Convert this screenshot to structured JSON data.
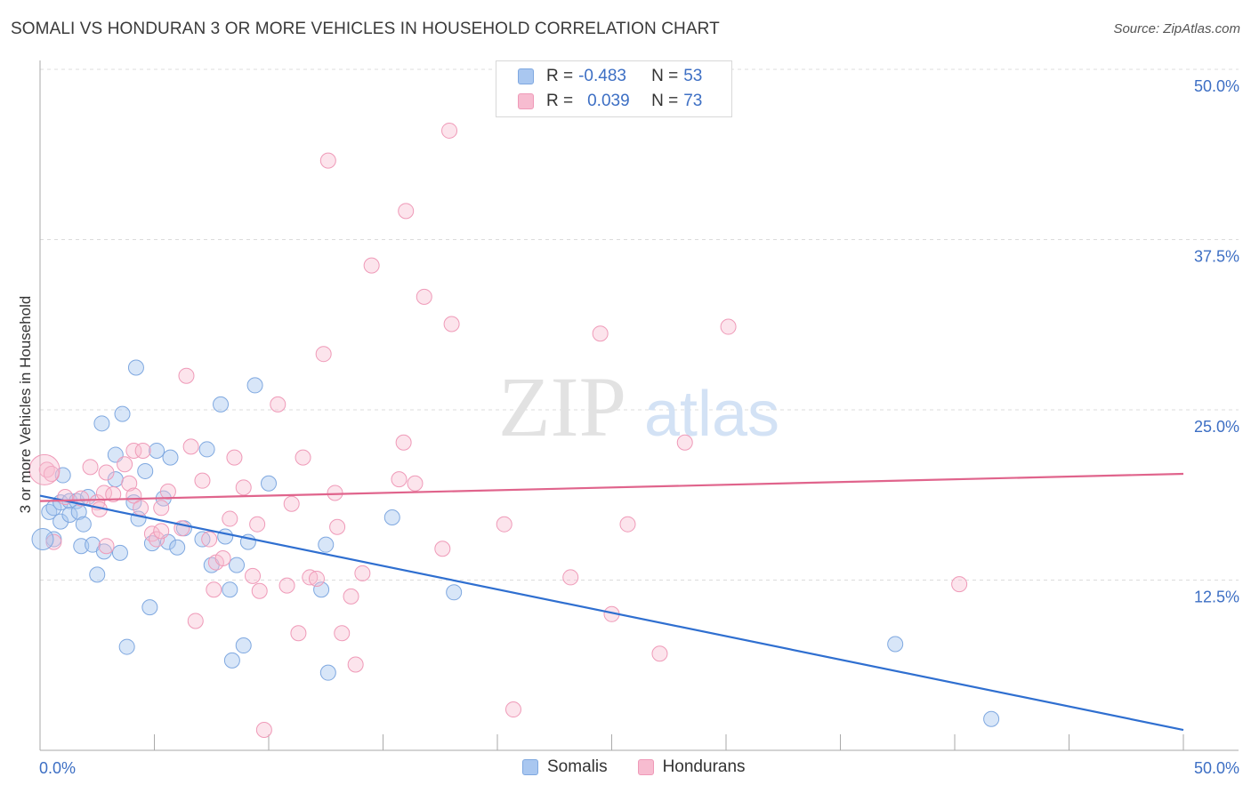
{
  "title": "SOMALI VS HONDURAN 3 OR MORE VEHICLES IN HOUSEHOLD CORRELATION CHART",
  "source": "Source: ZipAtlas.com",
  "watermark": {
    "zip": "ZIP",
    "atlas": "atlas"
  },
  "legend": [
    {
      "r_label": "R =",
      "r_value": "-0.483",
      "n_label": "N =",
      "n_value": "53",
      "color": "#a9c7f0",
      "stroke": "#7fa8e0"
    },
    {
      "r_label": "R =",
      "r_value": "0.039",
      "n_label": "N =",
      "n_value": "73",
      "color": "#f7bcd0",
      "stroke": "#ef9ab8"
    }
  ],
  "bottom_legend": [
    {
      "label": "Somalis",
      "color": "#a9c7f0",
      "stroke": "#7fa8e0"
    },
    {
      "label": "Hondurans",
      "color": "#f7bcd0",
      "stroke": "#ef9ab8"
    }
  ],
  "chart_data": {
    "type": "scatter",
    "xlabel": "",
    "ylabel": "3 or more Vehicles in Household",
    "xlim": [
      0,
      50
    ],
    "ylim": [
      0,
      50
    ],
    "x_tick_labels": [
      "0.0%",
      "50.0%"
    ],
    "y_ticks": [
      12.5,
      25.0,
      37.5,
      50.0
    ],
    "y_tick_labels": [
      "12.5%",
      "25.0%",
      "37.5%",
      "50.0%"
    ],
    "grid": true,
    "series": [
      {
        "name": "Somalis",
        "color": "#6f9fe0",
        "trend": {
          "x": [
            0,
            50
          ],
          "y": [
            18.7,
            1.5
          ],
          "color": "#2f6fd0"
        },
        "points": [
          [
            0.4,
            17.5
          ],
          [
            0.6,
            15.5
          ],
          [
            0.6,
            17.8
          ],
          [
            0.9,
            18.2
          ],
          [
            0.9,
            16.8
          ],
          [
            1.0,
            20.2
          ],
          [
            1.3,
            18.3
          ],
          [
            1.3,
            17.3
          ],
          [
            1.6,
            18.3
          ],
          [
            1.7,
            17.5
          ],
          [
            1.8,
            15.0
          ],
          [
            1.9,
            16.6
          ],
          [
            2.1,
            18.6
          ],
          [
            2.3,
            15.1
          ],
          [
            2.5,
            12.9
          ],
          [
            2.7,
            24.0
          ],
          [
            2.8,
            14.6
          ],
          [
            3.3,
            21.7
          ],
          [
            3.3,
            19.9
          ],
          [
            3.5,
            14.5
          ],
          [
            3.6,
            24.7
          ],
          [
            3.8,
            7.6
          ],
          [
            4.1,
            18.2
          ],
          [
            4.2,
            28.1
          ],
          [
            4.3,
            17.0
          ],
          [
            4.6,
            20.5
          ],
          [
            4.8,
            10.5
          ],
          [
            4.9,
            15.2
          ],
          [
            5.1,
            22.0
          ],
          [
            5.4,
            18.5
          ],
          [
            5.6,
            15.3
          ],
          [
            5.7,
            21.5
          ],
          [
            6.0,
            14.9
          ],
          [
            6.3,
            16.3
          ],
          [
            7.1,
            15.5
          ],
          [
            7.3,
            22.1
          ],
          [
            7.5,
            13.6
          ],
          [
            7.9,
            25.4
          ],
          [
            8.1,
            15.7
          ],
          [
            8.3,
            11.8
          ],
          [
            8.4,
            6.6
          ],
          [
            8.6,
            13.6
          ],
          [
            8.9,
            7.7
          ],
          [
            9.1,
            15.3
          ],
          [
            9.4,
            26.8
          ],
          [
            10.0,
            19.6
          ],
          [
            12.3,
            11.8
          ],
          [
            12.5,
            15.1
          ],
          [
            12.6,
            5.7
          ],
          [
            15.4,
            17.1
          ],
          [
            18.1,
            11.6
          ],
          [
            37.4,
            7.8
          ],
          [
            41.6,
            2.3
          ]
        ]
      },
      {
        "name": "Hondurans",
        "color": "#f0a0bc",
        "trend": {
          "x": [
            0,
            50
          ],
          "y": [
            18.3,
            20.3
          ],
          "color": "#e0648c"
        },
        "points": [
          [
            0.3,
            20.6
          ],
          [
            0.5,
            20.3
          ],
          [
            0.6,
            15.3
          ],
          [
            1.1,
            18.6
          ],
          [
            1.8,
            18.5
          ],
          [
            2.2,
            20.8
          ],
          [
            2.5,
            18.2
          ],
          [
            2.6,
            17.7
          ],
          [
            2.8,
            18.9
          ],
          [
            2.9,
            15.0
          ],
          [
            2.9,
            20.4
          ],
          [
            3.2,
            18.8
          ],
          [
            3.7,
            21.0
          ],
          [
            3.9,
            19.6
          ],
          [
            4.1,
            22.0
          ],
          [
            4.1,
            18.7
          ],
          [
            4.4,
            17.8
          ],
          [
            4.5,
            22.0
          ],
          [
            4.9,
            15.9
          ],
          [
            5.1,
            15.5
          ],
          [
            5.3,
            16.1
          ],
          [
            5.3,
            17.8
          ],
          [
            5.6,
            19.0
          ],
          [
            6.2,
            16.3
          ],
          [
            6.4,
            27.5
          ],
          [
            6.6,
            22.3
          ],
          [
            6.8,
            9.5
          ],
          [
            7.1,
            19.8
          ],
          [
            7.4,
            15.5
          ],
          [
            7.6,
            11.8
          ],
          [
            7.7,
            13.8
          ],
          [
            8.0,
            14.1
          ],
          [
            8.3,
            17.0
          ],
          [
            8.5,
            21.5
          ],
          [
            8.9,
            19.3
          ],
          [
            9.3,
            12.8
          ],
          [
            9.5,
            16.6
          ],
          [
            9.6,
            11.7
          ],
          [
            9.8,
            1.5
          ],
          [
            10.4,
            25.4
          ],
          [
            10.8,
            12.1
          ],
          [
            11.0,
            18.1
          ],
          [
            11.3,
            8.6
          ],
          [
            11.5,
            21.5
          ],
          [
            11.8,
            12.7
          ],
          [
            12.1,
            12.6
          ],
          [
            12.4,
            29.1
          ],
          [
            12.6,
            43.3
          ],
          [
            12.9,
            18.9
          ],
          [
            13.0,
            16.4
          ],
          [
            13.2,
            8.6
          ],
          [
            13.6,
            11.3
          ],
          [
            13.8,
            6.3
          ],
          [
            14.1,
            13.0
          ],
          [
            14.5,
            35.6
          ],
          [
            15.7,
            19.9
          ],
          [
            15.9,
            22.6
          ],
          [
            16.0,
            39.6
          ],
          [
            16.4,
            19.6
          ],
          [
            16.8,
            33.3
          ],
          [
            17.6,
            14.8
          ],
          [
            17.9,
            45.5
          ],
          [
            18.0,
            31.3
          ],
          [
            20.3,
            16.6
          ],
          [
            20.7,
            3.0
          ],
          [
            23.2,
            12.7
          ],
          [
            24.5,
            30.6
          ],
          [
            25.0,
            10.0
          ],
          [
            27.1,
            7.1
          ],
          [
            28.2,
            22.6
          ],
          [
            30.1,
            31.1
          ],
          [
            40.2,
            12.2
          ],
          [
            25.7,
            16.6
          ]
        ]
      }
    ]
  }
}
